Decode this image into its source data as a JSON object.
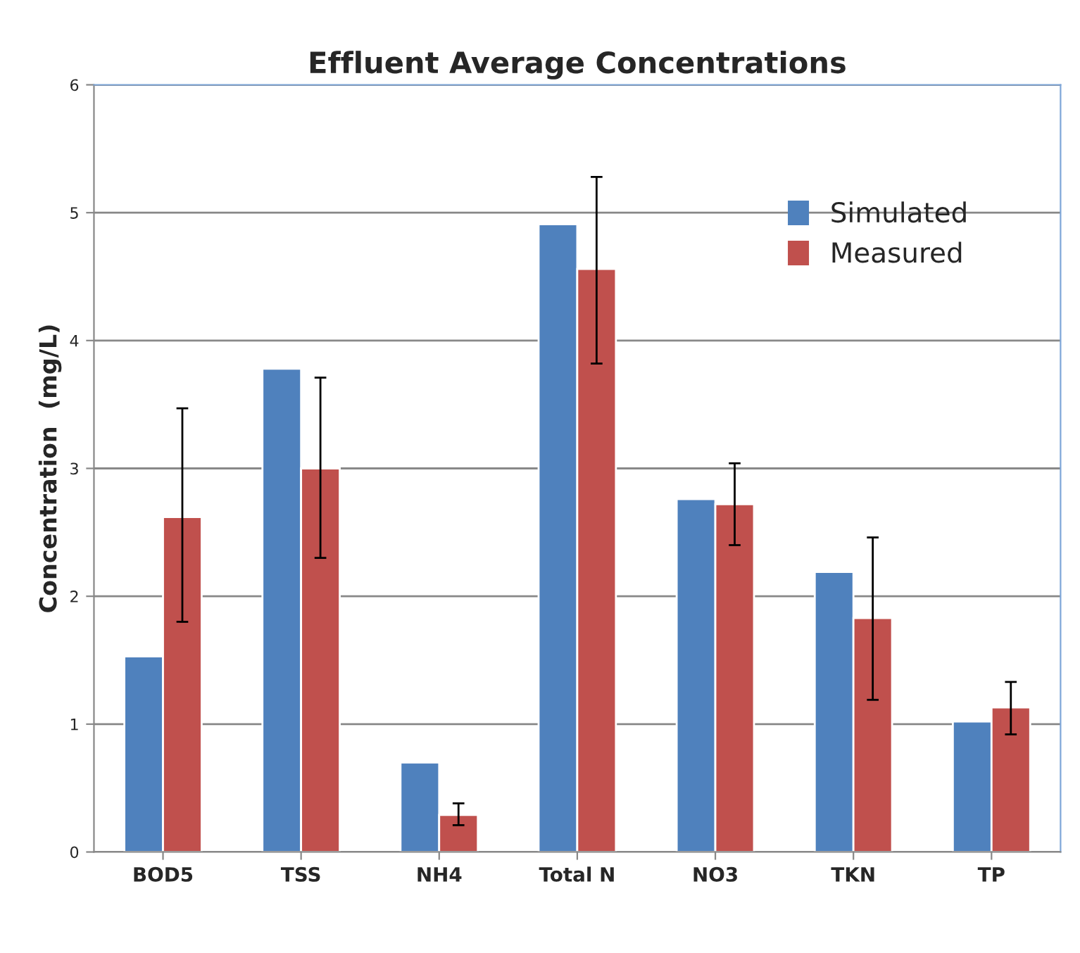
{
  "chart_data": {
    "type": "bar",
    "title": "Effluent Average Concentrations",
    "ylabel": "Concentration  (mg/L)",
    "categories": [
      "BOD5",
      "TSS",
      "NH4",
      "Total N",
      "NO3",
      "TKN",
      "TP"
    ],
    "series": [
      {
        "name": "Simulated",
        "color": "#4f81bd",
        "values": [
          1.53,
          3.78,
          0.7,
          4.91,
          2.76,
          2.19,
          1.02
        ]
      },
      {
        "name": "Measured",
        "color": "#c0504d",
        "values": [
          2.62,
          3.0,
          0.29,
          4.56,
          2.72,
          1.83,
          1.13
        ],
        "errors": [
          [
            1.8,
            3.47
          ],
          [
            2.3,
            3.71
          ],
          [
            0.21,
            0.38
          ],
          [
            3.82,
            5.28
          ],
          [
            2.4,
            3.04
          ],
          [
            1.19,
            2.46
          ],
          [
            0.92,
            1.33
          ]
        ]
      }
    ],
    "ylim": [
      0,
      6
    ],
    "yticks": [
      0,
      1,
      2,
      3,
      4,
      5,
      6
    ],
    "grid": "y",
    "legend": "top right"
  }
}
